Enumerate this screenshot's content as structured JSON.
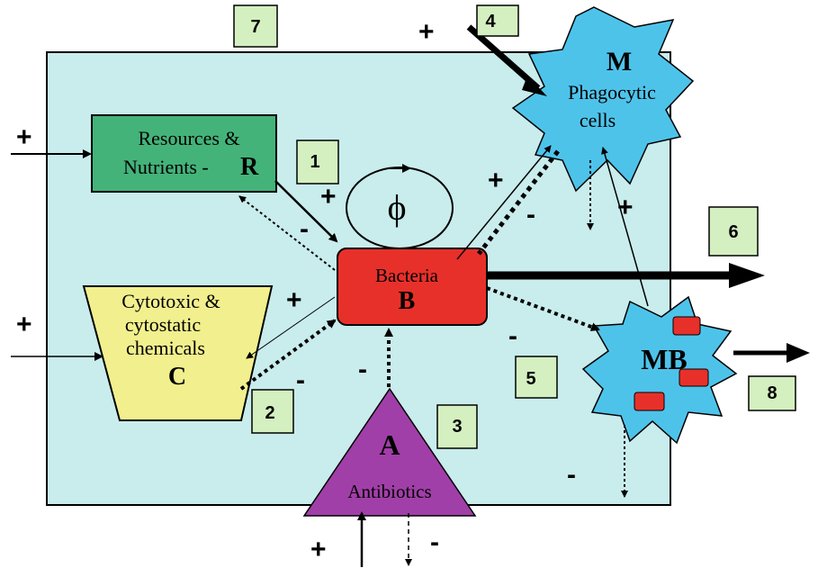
{
  "nodes": {
    "resources": {
      "line1": "Resources &",
      "line2": "Nutrients  -",
      "letter": "R"
    },
    "bacteria": {
      "name": "Bacteria",
      "letter": "B"
    },
    "chemicals": {
      "line1": "Cytotoxic &",
      "line2": "cytostatic",
      "line3": "chemicals",
      "letter": "C"
    },
    "antibiotics": {
      "letter": "A",
      "name": "Antibiotics"
    },
    "phagocytes": {
      "letter": "M",
      "line1": "Phagocytic",
      "line2": "cells"
    },
    "mb": {
      "letter": "MB"
    },
    "phi": {
      "symbol": "ϕ"
    }
  },
  "numbers": [
    "1",
    "2",
    "3",
    "4",
    "5",
    "6",
    "7",
    "8"
  ],
  "signs": {
    "plus": "+",
    "minus": "-"
  },
  "colors": {
    "compartment": "#c9ecec",
    "resources": "#44b37a",
    "bacteria": "#e8302a",
    "chemicals": "#f2ef8e",
    "antibiotics": "#a13fa8",
    "phagocytes": "#4ec3ea",
    "numberBox": "#d4efc0"
  }
}
